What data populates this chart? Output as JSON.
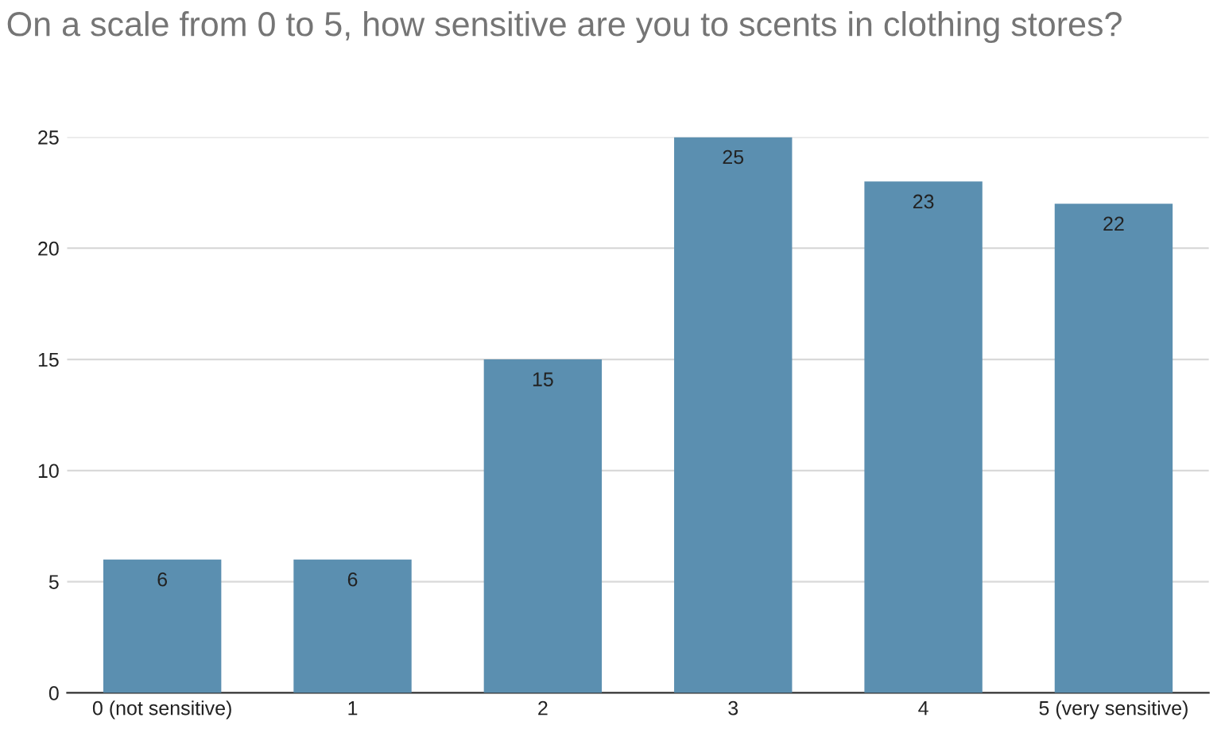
{
  "chart_data": {
    "type": "bar",
    "title": "On a scale from 0 to 5, how sensitive are you to scents in clothing stores?",
    "categories": [
      "0 (not sensitive)",
      "1",
      "2",
      "3",
      "4",
      "5 (very sensitive)"
    ],
    "values": [
      6,
      6,
      15,
      25,
      23,
      22
    ],
    "color": "#5b8fb0",
    "ylim": [
      0,
      25
    ],
    "yticks": [
      0,
      5,
      10,
      15,
      20,
      25
    ],
    "grid": "y",
    "data_labels": true
  }
}
